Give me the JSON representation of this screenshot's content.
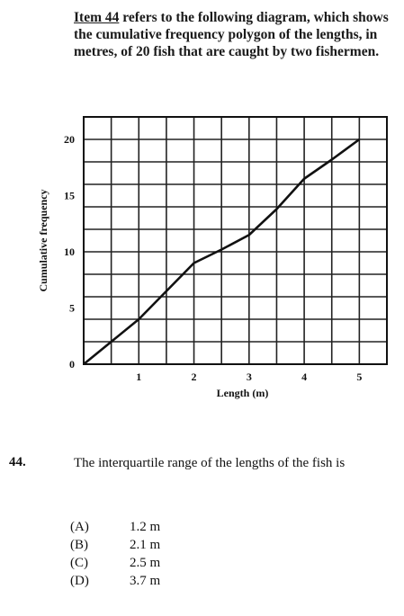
{
  "intro": {
    "item_ref": "Item 44",
    "text": " refers to the following diagram, which shows the cumulative frequency polygon of the lengths, in metres, of 20 fish that are caught by two fishermen."
  },
  "chart_data": {
    "type": "line",
    "title": "",
    "xlabel": "Length (m)",
    "ylabel": "Cumulative frequency",
    "xlim": [
      0,
      5.5
    ],
    "ylim": [
      0,
      22
    ],
    "x_ticks": [
      1,
      2,
      3,
      4,
      5
    ],
    "x_tick_labels": [
      "1",
      "2",
      "3",
      "4",
      "5"
    ],
    "y_ticks": [
      0,
      5,
      10,
      15,
      20
    ],
    "y_tick_labels": [
      "0",
      "5",
      "10",
      "15",
      "20"
    ],
    "grid": true,
    "series": [
      {
        "x": [
          0,
          1,
          2,
          2.5,
          3,
          3.5,
          4,
          4.5,
          5
        ],
        "y": [
          0,
          4,
          9,
          10.2,
          11.5,
          13.8,
          16.5,
          18.2,
          20
        ]
      }
    ]
  },
  "question": {
    "number": "44.",
    "text": "The interquartile range of the lengths of the fish is"
  },
  "options": [
    {
      "letter": "(A)",
      "value": "1.2 m"
    },
    {
      "letter": "(B)",
      "value": "2.1 m"
    },
    {
      "letter": "(C)",
      "value": "2.5 m"
    },
    {
      "letter": "(D)",
      "value": "3.7 m"
    }
  ]
}
